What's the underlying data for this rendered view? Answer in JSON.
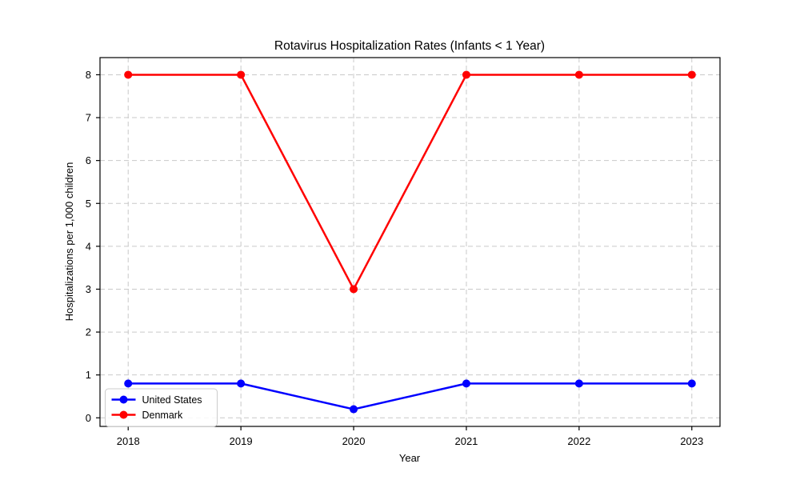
{
  "chart_data": {
    "type": "line",
    "title": "Rotavirus Hospitalization Rates (Infants < 1 Year)",
    "xlabel": "Year",
    "ylabel": "Hospitalizations per 1,000 children",
    "x": [
      2018,
      2019,
      2020,
      2021,
      2022,
      2023
    ],
    "xtick_labels": [
      "2018",
      "2019",
      "2020",
      "2021",
      "2022",
      "2023"
    ],
    "yticks": [
      0,
      1,
      2,
      3,
      4,
      5,
      6,
      7,
      8
    ],
    "ytick_labels": [
      "0",
      "1",
      "2",
      "3",
      "4",
      "5",
      "6",
      "7",
      "8"
    ],
    "series": [
      {
        "name": "United States",
        "color": "#0000ff",
        "values": [
          0.8,
          0.8,
          0.2,
          0.8,
          0.8,
          0.8
        ]
      },
      {
        "name": "Denmark",
        "color": "#ff0000",
        "values": [
          8,
          8,
          3,
          8,
          8,
          8
        ]
      }
    ],
    "xlim": [
      2017.75,
      2023.25
    ],
    "ylim": [
      -0.2,
      8.4
    ],
    "grid": true,
    "grid_style": "dashed",
    "grid_color": "#c9c9c9",
    "axis_color": "#000000",
    "background_color": "#ffffff",
    "legend_position": "lower-left",
    "legend_border_color": "#cccccc",
    "legend_background": "#ffffff",
    "marker": "circle"
  }
}
